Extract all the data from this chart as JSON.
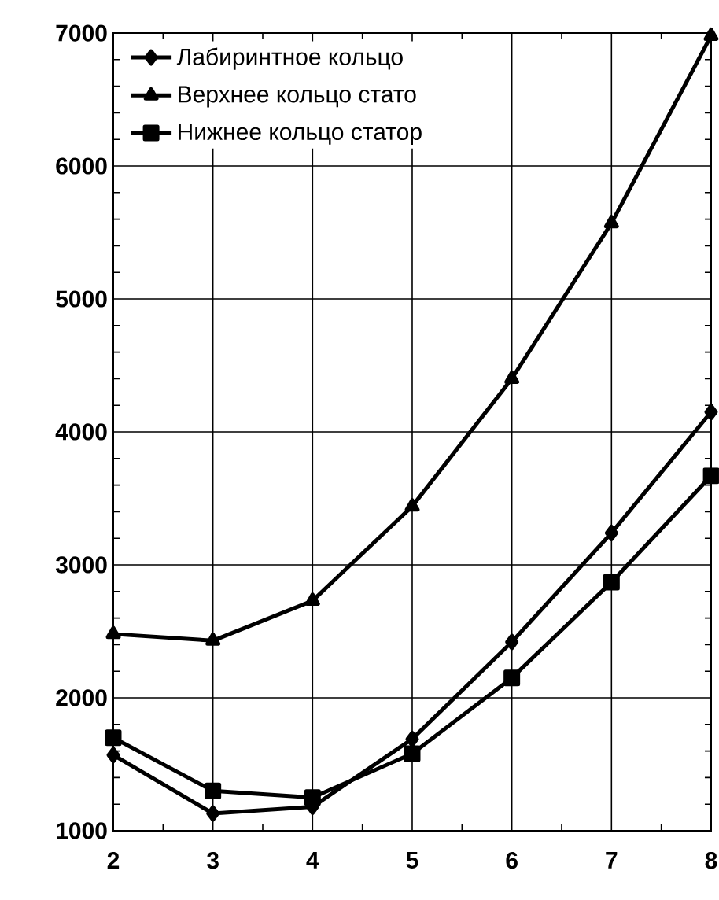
{
  "chart_data": {
    "type": "line",
    "x": [
      2,
      3,
      4,
      5,
      6,
      7,
      8
    ],
    "series": [
      {
        "name": "Лабиринтное кольцо",
        "color": "#000000",
        "marker": "diamond",
        "values": [
          1570,
          1130,
          1180,
          1690,
          2420,
          3240,
          4150
        ]
      },
      {
        "name": "Верхнее кольцо стато",
        "color": "#000000",
        "marker": "triangle",
        "values": [
          2480,
          2430,
          2730,
          3440,
          4400,
          5570,
          6980
        ]
      },
      {
        "name": "Нижнее кольцо статор",
        "color": "#000000",
        "marker": "square",
        "values": [
          1700,
          1300,
          1250,
          1580,
          2150,
          2870,
          3670
        ]
      }
    ],
    "xlim": [
      2,
      8
    ],
    "ylim": [
      1000,
      7000
    ],
    "xticks": [
      2,
      3,
      4,
      5,
      6,
      7,
      8
    ],
    "yticks": [
      1000,
      2000,
      3000,
      4000,
      5000,
      6000,
      7000
    ],
    "grid": true,
    "legend": "top left",
    "line_style": "solid"
  }
}
